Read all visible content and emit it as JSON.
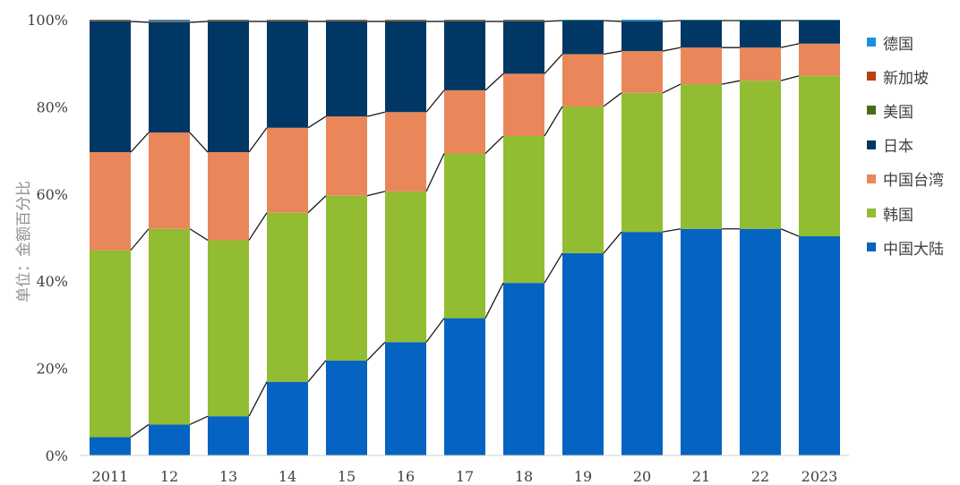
{
  "chart_data": {
    "type": "bar",
    "stacked": true,
    "percent": true,
    "categories": [
      "2011",
      "12",
      "13",
      "14",
      "15",
      "16",
      "17",
      "18",
      "19",
      "20",
      "21",
      "22",
      "2023"
    ],
    "ylabel": "单位：金额百分比",
    "yticks": [
      "0%",
      "20%",
      "40%",
      "60%",
      "80%",
      "100%"
    ],
    "ylim": [
      0,
      100
    ],
    "grid": false,
    "legend_position": "right",
    "series": [
      {
        "name": "中国大陆",
        "color": "#0563c1",
        "values": [
          4.2,
          7.1,
          9.0,
          16.9,
          21.8,
          26.0,
          31.5,
          39.6,
          46.4,
          51.3,
          52.0,
          52.0,
          50.3
        ]
      },
      {
        "name": "韩国",
        "color": "#92bc31",
        "values": [
          42.9,
          44.9,
          40.4,
          38.8,
          37.8,
          34.6,
          37.8,
          33.7,
          33.7,
          31.9,
          33.2,
          34.0,
          36.8
        ]
      },
      {
        "name": "中国台湾",
        "color": "#e9875a",
        "values": [
          22.5,
          22.1,
          20.2,
          19.5,
          18.2,
          18.2,
          14.5,
          14.3,
          12.0,
          9.6,
          8.4,
          7.6,
          7.4
        ]
      },
      {
        "name": "日本",
        "color": "#003764",
        "values": [
          30.0,
          25.3,
          30.0,
          24.4,
          21.8,
          20.8,
          15.8,
          12.0,
          7.7,
          6.8,
          6.2,
          6.2,
          5.3
        ]
      },
      {
        "name": "美国",
        "color": "#4a6b1a",
        "values": [
          0.1,
          0.1,
          0.1,
          0.1,
          0.1,
          0.1,
          0.1,
          0.1,
          0.1,
          0.1,
          0.1,
          0.1,
          0.1
        ]
      },
      {
        "name": "新加坡",
        "color": "#b5410e",
        "values": [
          0.2,
          0.2,
          0.2,
          0.2,
          0.2,
          0.2,
          0.2,
          0.2,
          0.0,
          0.0,
          0.0,
          0.0,
          0.0
        ]
      },
      {
        "name": "德国",
        "color": "#1a8fe3",
        "values": [
          0.1,
          0.3,
          0.1,
          0.1,
          0.1,
          0.1,
          0.1,
          0.1,
          0.1,
          0.3,
          0.1,
          0.1,
          0.1
        ]
      }
    ]
  }
}
